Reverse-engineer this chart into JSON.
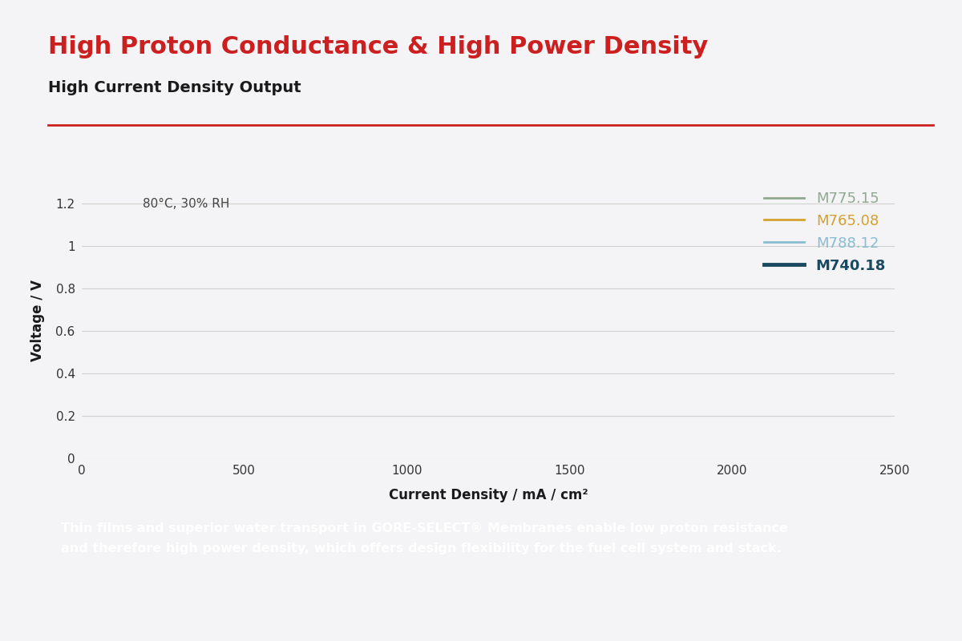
{
  "title": "High Proton Conductance & High Power Density",
  "subtitle": "High Current Density Output",
  "title_color": "#cc2020",
  "subtitle_color": "#1a1a1a",
  "annotation": "80°C, 30% RH",
  "xlabel": "Current Density / mA / cm²",
  "ylabel": "Voltage / V",
  "xlim": [
    0,
    2500
  ],
  "ylim": [
    0,
    1.3
  ],
  "xticks": [
    0,
    500,
    1000,
    1500,
    2000,
    2500
  ],
  "yticks": [
    0,
    0.2,
    0.4,
    0.6,
    0.8,
    1.0,
    1.2
  ],
  "background_color": "#f4f4f6",
  "plot_background_color": "#f4f4f6",
  "grid_color": "#d0d0d0",
  "separator_color": "#cc2020",
  "series": [
    {
      "label": "M775.15",
      "color": "#8fa88f",
      "linewidth": 2.0
    },
    {
      "label": "M765.08",
      "color": "#d4a030",
      "linewidth": 2.0
    },
    {
      "label": "M788.12",
      "color": "#88bcd0",
      "linewidth": 2.0
    },
    {
      "label": "M740.18",
      "color": "#1a4a60",
      "linewidth": 3.5
    }
  ],
  "footer_text_line1": "Thin films and superior water transport in GORE-SELECT® Membranes enable low proton resistance",
  "footer_text_line2": "and therefore high power density, which offers design flexibility for the fuel cell system and stack.",
  "footer_bg_color": "#7fa8bc",
  "footer_text_color": "#ffffff"
}
